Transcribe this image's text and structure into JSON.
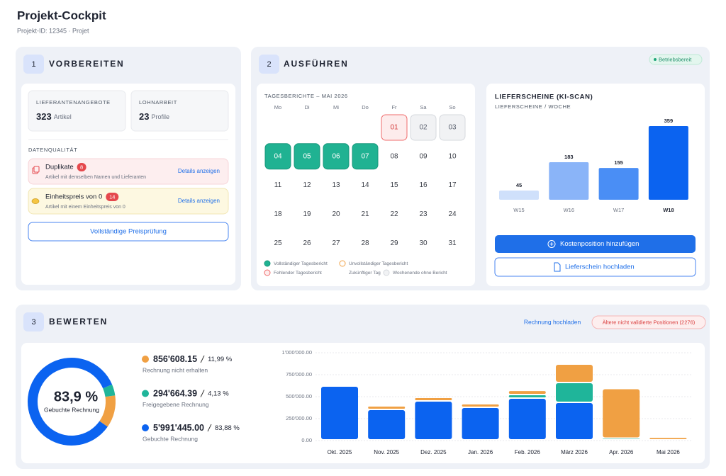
{
  "header": {
    "title": "Projekt-Cockpit",
    "subtitle": "Projekt-ID: 12345 · Projet"
  },
  "prepare": {
    "step": "1",
    "title": "VORBEREITEN",
    "stats": [
      {
        "label": "LIEFERANTENANGEBOTE",
        "value": 323,
        "unit": "Artikel"
      },
      {
        "label": "LOHNARBEIT",
        "value": 23,
        "unit": "Profile"
      }
    ],
    "quality_title": "DATENQUALITÄT",
    "issues": [
      {
        "title": "Duplikate",
        "count": 8,
        "description": "Artikel mit demselben Namen und Lieferanten",
        "link": "Details anzeigen"
      },
      {
        "title": "Einheitspreis von 0",
        "count": 14,
        "description": "Artikel mit einem Einheitspreis von 0",
        "link": "Details anzeigen"
      }
    ],
    "button": "Vollständige Preisprüfung"
  },
  "execute": {
    "step": "2",
    "title": "AUSFÜHREN",
    "status": "Betriebsbereit",
    "calendar": {
      "title": "TAGESBERICHTE – MAI 2026",
      "weekdays": [
        "Mo",
        "Di",
        "Mi",
        "Do",
        "Fr",
        "Sa",
        "So"
      ],
      "days": [
        null,
        null,
        null,
        null,
        {
          "label": "01",
          "status": "missing"
        },
        {
          "label": "02",
          "status": "weekend"
        },
        {
          "label": "03",
          "status": "weekend"
        },
        {
          "label": "04",
          "status": "complete"
        },
        {
          "label": "05",
          "status": "complete"
        },
        {
          "label": "06",
          "status": "complete"
        },
        {
          "label": "07",
          "status": "complete"
        },
        {
          "label": "08",
          "status": "future"
        },
        {
          "label": "09",
          "status": "future"
        },
        {
          "label": "10",
          "status": "future"
        },
        {
          "label": "11",
          "status": "future"
        },
        {
          "label": "12",
          "status": "future"
        },
        {
          "label": "13",
          "status": "future"
        },
        {
          "label": "14",
          "status": "future"
        },
        {
          "label": "15",
          "status": "future"
        },
        {
          "label": "16",
          "status": "future"
        },
        {
          "label": "17",
          "status": "future"
        },
        {
          "label": "18",
          "status": "future"
        },
        {
          "label": "19",
          "status": "future"
        },
        {
          "label": "20",
          "status": "future"
        },
        {
          "label": "21",
          "status": "future"
        },
        {
          "label": "22",
          "status": "future"
        },
        {
          "label": "23",
          "status": "future"
        },
        {
          "label": "24",
          "status": "future"
        },
        {
          "label": "25",
          "status": "future"
        },
        {
          "label": "26",
          "status": "future"
        },
        {
          "label": "27",
          "status": "future"
        },
        {
          "label": "28",
          "status": "future"
        },
        {
          "label": "29",
          "status": "future"
        },
        {
          "label": "30",
          "status": "future"
        },
        {
          "label": "31",
          "status": "future"
        }
      ],
      "legend": [
        {
          "label": "Vollständiger Tagesbericht",
          "status": "complete"
        },
        {
          "label": "Unvollständiger Tagesbericht",
          "status": "incomplete"
        },
        {
          "label": "Fehlender Tagesbericht",
          "status": "missing"
        },
        {
          "label": "Zukünftiger Tag",
          "status": "future"
        },
        {
          "label": "Wochenende ohne Bericht",
          "status": "weekend"
        }
      ]
    },
    "buttons": [
      "Kostenposition hinzufügen",
      "Lieferschein hochladen"
    ]
  },
  "evaluate": {
    "step": "3",
    "title": "BEWERTEN",
    "link": "Rechnung hochladen",
    "badge": "Ältere nicht validierte Positionen (2276)"
  },
  "chart_data": [
    {
      "type": "bar",
      "title": "LIEFERSCHEINE (KI-SCAN)",
      "subtitle": "LIEFERSCHEINE / WOCHE",
      "categories": [
        "W15",
        "W16",
        "W17",
        "W18"
      ],
      "values": [
        45,
        183,
        155,
        359
      ],
      "colors": [
        "#cfe0fb",
        "#8ab4f8",
        "#4a8ef5",
        "#0b63f0"
      ],
      "highlight": 3
    },
    {
      "type": "donut",
      "center_label": "83,9 %",
      "labels": [
        "Rechnung nicht erhalten",
        "Freigegebene Rechnung",
        "Gebuchte Rechnung"
      ],
      "values": [
        11.99,
        4.13,
        83.88
      ],
      "value_labels": [
        "11,99 %",
        "4,13 %",
        "83,88 %"
      ],
      "amounts": [
        856608.15,
        294664.39,
        5991445
      ],
      "amount_labels": [
        "856'608.15",
        "294'664.39",
        "5'991'445.00"
      ],
      "colors": [
        "#f0a043",
        "#1fb59a",
        "#0b63f0"
      ]
    },
    {
      "type": "stacked-bar",
      "categories": [
        "Okt. 2025",
        "Nov. 2025",
        "Dez. 2025",
        "Jan. 2026",
        "Feb. 2026",
        "März 2026",
        "Apr. 2026",
        "Mai 2026"
      ],
      "series": [
        {
          "color": "#0b63f0",
          "values": [
            613000,
            347000,
            444000,
            371000,
            476000,
            427000,
            0,
            0
          ]
        },
        {
          "color": "#1fb59a",
          "values": [
            0,
            0,
            0,
            0,
            40000,
            226000,
            20000,
            0
          ]
        },
        {
          "color": "#f0a043",
          "values": [
            0,
            40000,
            40000,
            40000,
            48000,
            210000,
            565000,
            30000
          ]
        }
      ],
      "ylim": [
        0,
        1000000
      ],
      "yticks": [
        {
          "value": 0,
          "label": "0.00"
        },
        {
          "value": 250000,
          "label": "250'000.00"
        },
        {
          "value": 500000,
          "label": "500'000.00"
        },
        {
          "value": 750000,
          "label": "750'000.00"
        },
        {
          "value": 1000000,
          "label": "1'000'000.00"
        }
      ],
      "grid": true
    }
  ]
}
